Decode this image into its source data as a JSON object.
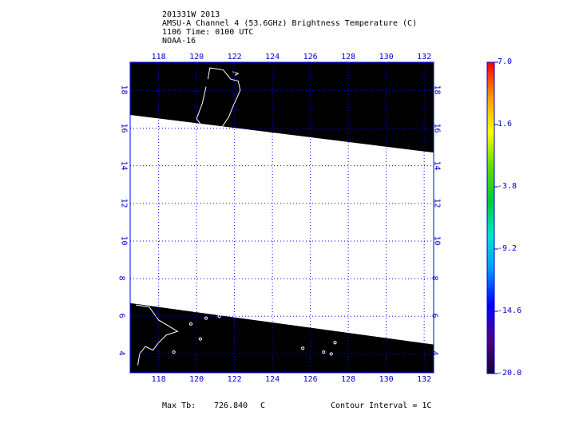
{
  "header": {
    "line1": "201331W 2013",
    "line2": "AMSU-A Channel 4 (53.6GHz) Brightness Temperature (C)",
    "line3": "1106 Time: 0100 UTC",
    "line4": "NOAA-16"
  },
  "map": {
    "lon_min": 116.5,
    "lon_max": 132.5,
    "lat_min": 3,
    "lat_max": 19.5,
    "lon_ticks": [
      "118",
      "120",
      "122",
      "124",
      "126",
      "128",
      "130",
      "132"
    ],
    "lat_ticks": [
      "4",
      "6",
      "8",
      "10",
      "12",
      "14",
      "16",
      "18"
    ],
    "lon_values": [
      118,
      120,
      122,
      124,
      126,
      128,
      130,
      132
    ],
    "lat_values": [
      4,
      6,
      8,
      10,
      12,
      14,
      16,
      18
    ],
    "swath_north_edge": [
      [
        116.5,
        16.7
      ],
      [
        132.5,
        14.7
      ]
    ],
    "swath_south_edge": [
      [
        116.5,
        6.7
      ],
      [
        132.5,
        4.5
      ]
    ],
    "no_data_color": "#000000",
    "swath_color": "#ffffff",
    "grid_color": "#0000ff",
    "coast_color": "#ffffff"
  },
  "colorbar": {
    "labels": [
      "7.0",
      "1.6",
      "-3.8",
      "-9.2",
      "-14.6",
      "-20.0"
    ],
    "values": [
      7.0,
      1.6,
      -3.8,
      -9.2,
      -14.6,
      -20.0
    ],
    "min": -20.0,
    "max": 7.0,
    "colors": [
      "#1a0033",
      "#4b0082",
      "#0000ff",
      "#0099ff",
      "#00e5cc",
      "#00cc33",
      "#66dd00",
      "#ffff00",
      "#ff9900",
      "#ff0000"
    ]
  },
  "footer": {
    "max_label": "Max Tb:",
    "max_value": "726.840",
    "max_unit": "C",
    "contour": "Contour Interval = 1C"
  }
}
